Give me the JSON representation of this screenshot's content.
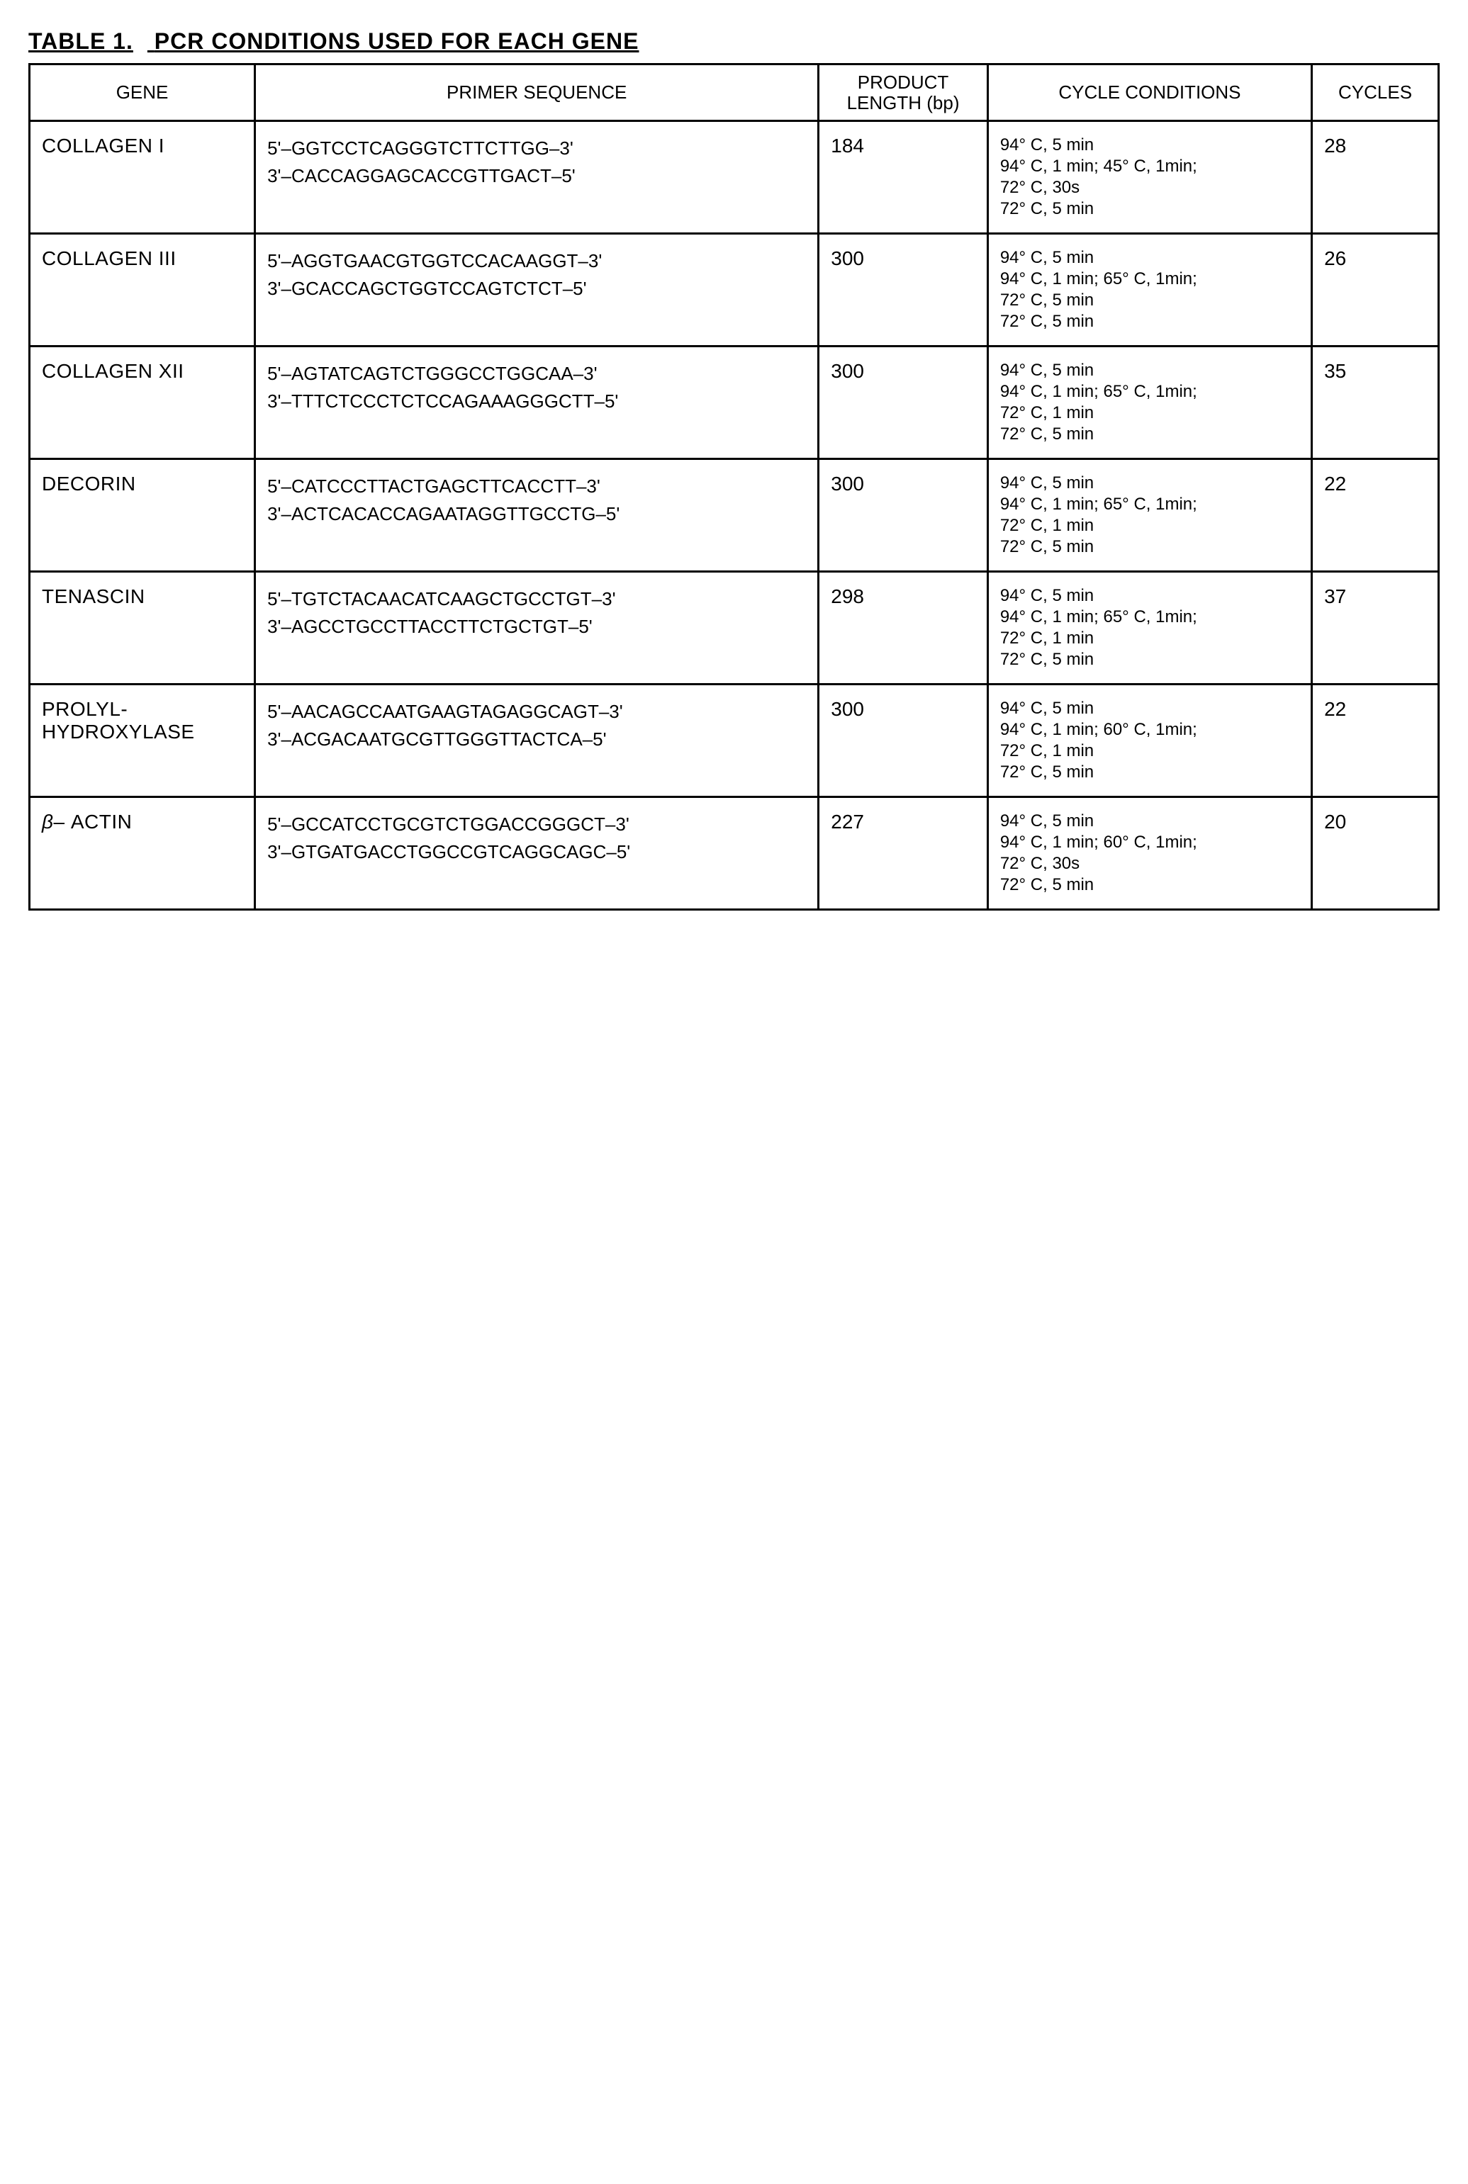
{
  "title_label": "TABLE 1.",
  "title_text": "PCR CONDITIONS USED FOR EACH GENE",
  "headers": {
    "gene": "GENE",
    "primer": "PRIMER SEQUENCE",
    "product_l1": "PRODUCT",
    "product_l2": "LENGTH (bp)",
    "conditions": "CYCLE CONDITIONS",
    "cycles": "CYCLES"
  },
  "rows": [
    {
      "gene_lines": [
        "COLLAGEN I"
      ],
      "primer_lines": [
        "5'–GGTCCTCAGGGTCTTCTTGG–3'",
        "3'–CACCAGGAGCACCGTTGACT–5'"
      ],
      "product": "184",
      "cond_lines": [
        "94° C, 5 min",
        "94° C, 1 min; 45° C, 1min;",
        "72° C, 30s",
        "72° C, 5 min"
      ],
      "cycles": "28"
    },
    {
      "gene_lines": [
        "COLLAGEN III"
      ],
      "primer_lines": [
        "5'–AGGTGAACGTGGTCCACAAGGT–3'",
        "3'–GCACCAGCTGGTCCAGTCTCT–5'"
      ],
      "product": "300",
      "cond_lines": [
        "94° C, 5 min",
        "94° C, 1 min; 65° C, 1min;",
        "72° C, 5 min",
        "72° C, 5 min"
      ],
      "cycles": "26"
    },
    {
      "gene_lines": [
        "COLLAGEN XII"
      ],
      "primer_lines": [
        "5'–AGTATCAGTCTGGGCCTGGCAA–3'",
        "3'–TTTCTCCCTCTCCAGAAAGGGCTT–5'"
      ],
      "product": "300",
      "cond_lines": [
        "94° C, 5 min",
        "94° C, 1 min; 65° C, 1min;",
        "72° C, 1 min",
        "72° C, 5 min"
      ],
      "cycles": "35"
    },
    {
      "gene_lines": [
        "DECORIN"
      ],
      "primer_lines": [
        "5'–CATCCCTTACTGAGCTTCACCTT–3'",
        "3'–ACTCACACCAGAATAGGTTGCCTG–5'"
      ],
      "product": "300",
      "cond_lines": [
        "94° C, 5 min",
        "94° C, 1 min; 65° C, 1min;",
        "72° C, 1 min",
        "72° C, 5 min"
      ],
      "cycles": "22"
    },
    {
      "gene_lines": [
        "TENASCIN"
      ],
      "primer_lines": [
        "5'–TGTCTACAACATCAAGCTGCCTGT–3'",
        "3'–AGCCTGCCTTACCTTCTGCTGT–5'"
      ],
      "product": "298",
      "cond_lines": [
        "94° C, 5 min",
        "94° C, 1 min; 65° C, 1min;",
        "72° C, 1 min",
        "72° C, 5 min"
      ],
      "cycles": "37"
    },
    {
      "gene_lines": [
        "PROLYL-",
        "HYDROXYLASE"
      ],
      "primer_lines": [
        "5'–AACAGCCAATGAAGTAGAGGCAGT–3'",
        "3'–ACGACAATGCGTTGGGTTACTCA–5'"
      ],
      "product": "300",
      "cond_lines": [
        "94° C, 5 min",
        "94° C, 1 min; 60° C, 1min;",
        "72° C, 1 min",
        "72° C, 5 min"
      ],
      "cycles": "22"
    },
    {
      "gene_lines": [
        "β– ACTIN"
      ],
      "primer_lines": [
        "5'–GCCATCCTGCGTCTGGACCGGGCT–3'",
        "3'–GTGATGACCTGGCCGTCAGGCAGC–5'"
      ],
      "product": "227",
      "cond_lines": [
        "94° C, 5 min",
        "94° C, 1 min; 60° C, 1min;",
        "72° C, 30s",
        "72° C, 5 min"
      ],
      "cycles": "20"
    }
  ]
}
